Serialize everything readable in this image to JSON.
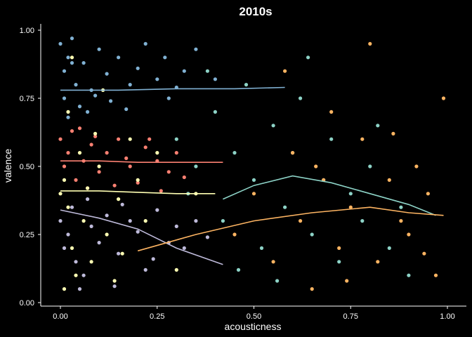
{
  "chart_data": {
    "type": "scatter",
    "title": "2010s",
    "xlabel": "acousticness",
    "ylabel": "valence",
    "xlim": [
      0.0,
      1.0
    ],
    "ylim": [
      0.0,
      1.0
    ],
    "x_ticks": [
      "0.00",
      "0.25",
      "0.50",
      "0.75",
      "1.00"
    ],
    "y_ticks": [
      "0.00",
      "0.25",
      "0.50",
      "0.75",
      "1.00"
    ],
    "grid": false,
    "legend": "none",
    "background": "#000000",
    "axis_color": "#ffffff",
    "series": [
      {
        "color": "#80b1d3",
        "points": [
          [
            0.0,
            0.95
          ],
          [
            0.02,
            0.9
          ],
          [
            0.01,
            0.85
          ],
          [
            0.04,
            0.8
          ],
          [
            0.03,
            0.97
          ],
          [
            0.06,
            0.88
          ],
          [
            0.08,
            0.78
          ],
          [
            0.1,
            0.93
          ],
          [
            0.12,
            0.84
          ],
          [
            0.15,
            0.9
          ],
          [
            0.18,
            0.8
          ],
          [
            0.2,
            0.86
          ],
          [
            0.22,
            0.95
          ],
          [
            0.25,
            0.82
          ],
          [
            0.27,
            0.9
          ],
          [
            0.3,
            0.79
          ],
          [
            0.32,
            0.85
          ],
          [
            0.35,
            0.93
          ],
          [
            0.28,
            0.75
          ],
          [
            0.05,
            0.72
          ],
          [
            0.07,
            0.7
          ],
          [
            0.09,
            0.76
          ],
          [
            0.13,
            0.74
          ],
          [
            0.17,
            0.71
          ],
          [
            0.02,
            0.68
          ],
          [
            0.4,
            0.82
          ],
          [
            0.01,
            0.75
          ],
          [
            0.03,
            0.88
          ]
        ],
        "trend": [
          [
            0.0,
            0.78
          ],
          [
            0.15,
            0.78
          ],
          [
            0.3,
            0.785
          ],
          [
            0.45,
            0.785
          ],
          [
            0.58,
            0.79
          ]
        ]
      },
      {
        "color": "#fb8072",
        "points": [
          [
            0.0,
            0.6
          ],
          [
            0.02,
            0.55
          ],
          [
            0.01,
            0.5
          ],
          [
            0.04,
            0.45
          ],
          [
            0.03,
            0.63
          ],
          [
            0.06,
            0.52
          ],
          [
            0.08,
            0.58
          ],
          [
            0.1,
            0.48
          ],
          [
            0.12,
            0.55
          ],
          [
            0.15,
            0.6
          ],
          [
            0.18,
            0.5
          ],
          [
            0.2,
            0.44
          ],
          [
            0.22,
            0.57
          ],
          [
            0.25,
            0.52
          ],
          [
            0.28,
            0.48
          ],
          [
            0.3,
            0.55
          ],
          [
            0.32,
            0.46
          ],
          [
            0.05,
            0.64
          ],
          [
            0.07,
            0.42
          ],
          [
            0.09,
            0.61
          ],
          [
            0.14,
            0.43
          ],
          [
            0.17,
            0.53
          ],
          [
            0.23,
            0.6
          ],
          [
            0.26,
            0.41
          ]
        ],
        "trend": [
          [
            0.0,
            0.52
          ],
          [
            0.1,
            0.52
          ],
          [
            0.2,
            0.515
          ],
          [
            0.3,
            0.515
          ],
          [
            0.42,
            0.515
          ]
        ]
      },
      {
        "color": "#ffffb3",
        "points": [
          [
            0.0,
            0.4
          ],
          [
            0.02,
            0.35
          ],
          [
            0.01,
            0.45
          ],
          [
            0.03,
            0.2
          ],
          [
            0.05,
            0.55
          ],
          [
            0.06,
            0.3
          ],
          [
            0.08,
            0.15
          ],
          [
            0.04,
            0.1
          ],
          [
            0.1,
            0.5
          ],
          [
            0.12,
            0.25
          ],
          [
            0.15,
            0.38
          ],
          [
            0.18,
            0.6
          ],
          [
            0.02,
            0.7
          ],
          [
            0.01,
            0.05
          ],
          [
            0.07,
            0.42
          ],
          [
            0.2,
            0.45
          ],
          [
            0.14,
            0.08
          ],
          [
            0.22,
            0.3
          ],
          [
            0.09,
            0.62
          ],
          [
            0.25,
            0.55
          ],
          [
            0.03,
            0.9
          ],
          [
            0.35,
            0.4
          ],
          [
            0.3,
            0.12
          ],
          [
            0.11,
            0.78
          ],
          [
            0.16,
            0.18
          ]
        ],
        "trend": [
          [
            0.0,
            0.41
          ],
          [
            0.1,
            0.41
          ],
          [
            0.2,
            0.405
          ],
          [
            0.3,
            0.4
          ],
          [
            0.4,
            0.4
          ]
        ]
      },
      {
        "color": "#bebada",
        "points": [
          [
            0.0,
            0.3
          ],
          [
            0.02,
            0.25
          ],
          [
            0.01,
            0.2
          ],
          [
            0.04,
            0.15
          ],
          [
            0.03,
            0.35
          ],
          [
            0.06,
            0.1
          ],
          [
            0.08,
            0.28
          ],
          [
            0.1,
            0.22
          ],
          [
            0.12,
            0.32
          ],
          [
            0.15,
            0.18
          ],
          [
            0.18,
            0.3
          ],
          [
            0.2,
            0.26
          ],
          [
            0.22,
            0.12
          ],
          [
            0.25,
            0.34
          ],
          [
            0.28,
            0.22
          ],
          [
            0.3,
            0.28
          ],
          [
            0.32,
            0.2
          ],
          [
            0.35,
            0.3
          ],
          [
            0.05,
            0.05
          ],
          [
            0.07,
            0.38
          ],
          [
            0.14,
            0.06
          ],
          [
            0.24,
            0.16
          ],
          [
            0.38,
            0.24
          ],
          [
            0.16,
            0.36
          ]
        ],
        "trend": [
          [
            0.0,
            0.34
          ],
          [
            0.1,
            0.31
          ],
          [
            0.2,
            0.27
          ],
          [
            0.3,
            0.2
          ],
          [
            0.42,
            0.14
          ]
        ]
      },
      {
        "color": "#8dd3c7",
        "points": [
          [
            0.3,
            0.6
          ],
          [
            0.35,
            0.5
          ],
          [
            0.4,
            0.7
          ],
          [
            0.42,
            0.3
          ],
          [
            0.45,
            0.55
          ],
          [
            0.48,
            0.8
          ],
          [
            0.5,
            0.45
          ],
          [
            0.52,
            0.2
          ],
          [
            0.55,
            0.65
          ],
          [
            0.58,
            0.35
          ],
          [
            0.6,
            0.55
          ],
          [
            0.62,
            0.75
          ],
          [
            0.65,
            0.25
          ],
          [
            0.68,
            0.45
          ],
          [
            0.7,
            0.6
          ],
          [
            0.72,
            0.15
          ],
          [
            0.75,
            0.4
          ],
          [
            0.78,
            0.3
          ],
          [
            0.8,
            0.5
          ],
          [
            0.85,
            0.2
          ],
          [
            0.88,
            0.35
          ],
          [
            0.9,
            0.1
          ],
          [
            0.38,
            0.85
          ],
          [
            0.46,
            0.12
          ],
          [
            0.56,
            0.08
          ],
          [
            0.64,
            0.9
          ],
          [
            0.82,
            0.65
          ],
          [
            0.33,
            0.4
          ]
        ],
        "trend": [
          [
            0.42,
            0.38
          ],
          [
            0.5,
            0.43
          ],
          [
            0.6,
            0.465
          ],
          [
            0.7,
            0.44
          ],
          [
            0.8,
            0.4
          ],
          [
            0.9,
            0.36
          ],
          [
            0.97,
            0.32
          ]
        ]
      },
      {
        "color": "#fdb462",
        "points": [
          [
            0.45,
            0.25
          ],
          [
            0.5,
            0.4
          ],
          [
            0.55,
            0.15
          ],
          [
            0.6,
            0.55
          ],
          [
            0.62,
            0.3
          ],
          [
            0.65,
            0.05
          ],
          [
            0.68,
            0.45
          ],
          [
            0.7,
            0.7
          ],
          [
            0.72,
            0.2
          ],
          [
            0.75,
            0.35
          ],
          [
            0.78,
            0.6
          ],
          [
            0.8,
            0.95
          ],
          [
            0.82,
            0.15
          ],
          [
            0.85,
            0.45
          ],
          [
            0.88,
            0.3
          ],
          [
            0.9,
            0.25
          ],
          [
            0.92,
            0.5
          ],
          [
            0.95,
            0.4
          ],
          [
            0.97,
            0.1
          ],
          [
            0.99,
            0.75
          ],
          [
            0.58,
            0.85
          ],
          [
            0.74,
            0.08
          ],
          [
            0.86,
            0.62
          ],
          [
            0.94,
            0.18
          ],
          [
            0.66,
            0.5
          ]
        ],
        "trend": [
          [
            0.2,
            0.19
          ],
          [
            0.35,
            0.25
          ],
          [
            0.5,
            0.3
          ],
          [
            0.65,
            0.33
          ],
          [
            0.8,
            0.35
          ],
          [
            0.9,
            0.33
          ],
          [
            0.99,
            0.32
          ]
        ]
      }
    ]
  }
}
